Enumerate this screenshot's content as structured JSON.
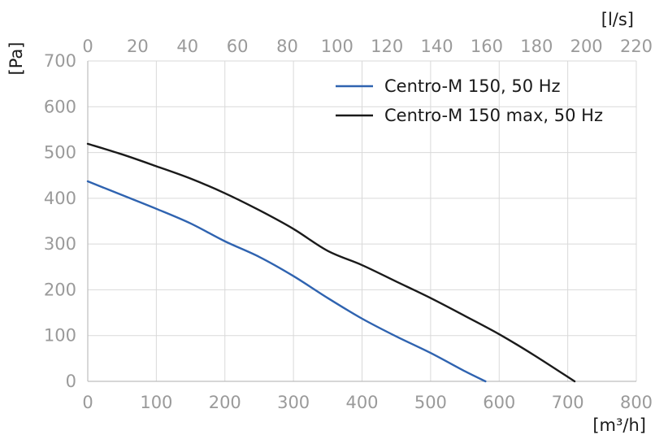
{
  "chart_data": {
    "type": "line",
    "x_unit": "[m³/h]",
    "x2_unit": "[l/s]",
    "y_unit": "[Pa]",
    "xlim": [
      0,
      800
    ],
    "ylim": [
      0,
      700
    ],
    "x2lim": [
      0,
      220
    ],
    "x_ticks": [
      "0",
      "100",
      "200",
      "300",
      "400",
      "500",
      "600",
      "700",
      "800"
    ],
    "x2_ticks": [
      "0",
      "20",
      "40",
      "60",
      "80",
      "100",
      "120",
      "140",
      "160",
      "180",
      "200",
      "220"
    ],
    "y_ticks": [
      "0",
      "100",
      "200",
      "300",
      "400",
      "500",
      "600",
      "700"
    ],
    "grid": true,
    "legend_position": "top-right",
    "series": [
      {
        "name": "Centro-M 150, 50 Hz",
        "color": "#2f63b0",
        "points": [
          [
            0,
            437
          ],
          [
            50,
            407
          ],
          [
            100,
            377
          ],
          [
            150,
            345
          ],
          [
            200,
            306
          ],
          [
            250,
            272
          ],
          [
            300,
            230
          ],
          [
            350,
            182
          ],
          [
            400,
            137
          ],
          [
            450,
            98
          ],
          [
            500,
            62
          ],
          [
            550,
            22
          ],
          [
            580,
            0
          ]
        ]
      },
      {
        "name": "Centro-M 150 max, 50 Hz",
        "color": "#1a1a1a",
        "points": [
          [
            0,
            519
          ],
          [
            50,
            496
          ],
          [
            100,
            470
          ],
          [
            150,
            443
          ],
          [
            200,
            411
          ],
          [
            250,
            374
          ],
          [
            300,
            333
          ],
          [
            350,
            285
          ],
          [
            400,
            254
          ],
          [
            450,
            218
          ],
          [
            500,
            182
          ],
          [
            550,
            143
          ],
          [
            600,
            103
          ],
          [
            650,
            58
          ],
          [
            710,
            0
          ]
        ]
      }
    ]
  }
}
